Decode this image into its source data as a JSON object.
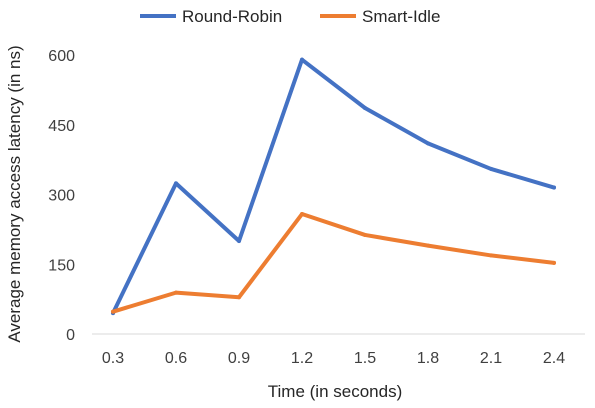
{
  "chart_data": {
    "type": "line",
    "x": [
      "0.3",
      "0.6",
      "0.9",
      "1.2",
      "1.5",
      "1.8",
      "2.1",
      "2.4"
    ],
    "series": [
      {
        "name": "Round-Robin",
        "color": "#4472C4",
        "values": [
          45,
          324,
          200,
          590,
          486,
          410,
          355,
          315
        ]
      },
      {
        "name": "Smart-Idle",
        "color": "#ED7D31",
        "values": [
          48,
          89,
          79,
          258,
          213,
          190,
          169,
          153
        ]
      }
    ],
    "xlabel": "Time (in seconds)",
    "ylabel": "Average memory access latency (in ns)",
    "ylim": [
      0,
      600
    ],
    "yticks": [
      "0",
      "150",
      "300",
      "450",
      "600"
    ],
    "grid": false,
    "legend_position": "top"
  }
}
